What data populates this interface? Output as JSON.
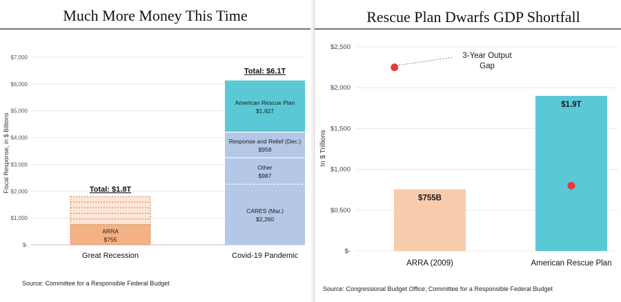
{
  "chart_data": [
    {
      "type": "bar",
      "title": "Much More Money This Time",
      "ylabel": "Fiscal Response, in $ Billions",
      "yticks": [
        "$-",
        "$1,000",
        "$2,000",
        "$3,000",
        "$4,000",
        "$5,000",
        "$6,000",
        "$7,000"
      ],
      "ylim": [
        0,
        7000
      ],
      "grid": true,
      "categories": [
        "Great Recession",
        "Covid-19 Pandemic"
      ],
      "stacks": [
        {
          "category": "Great Recession",
          "total_label": "Total: $1.8T",
          "total": 1800,
          "segments": [
            {
              "name": "ARRA",
              "value_label": "$755",
              "value": 755,
              "color": "#f4b183"
            },
            {
              "name": "",
              "value_label": "",
              "value": 1045,
              "color": "#fbe5d6"
            }
          ]
        },
        {
          "category": "Covid-19 Pandemic",
          "total_label": "Total: $6.1T",
          "total": 6132,
          "segments": [
            {
              "name": "CARES (Mar.)",
              "value_label": "$2,260",
              "value": 2260,
              "color": "#b4c7e7"
            },
            {
              "name": "Other",
              "value_label": "$987",
              "value": 987,
              "color": "#b4c7e7"
            },
            {
              "name": "Response and Relief (Dec.)",
              "value_label": "$958",
              "value": 958,
              "color": "#b4c7e7"
            },
            {
              "name": "American Rescue Plan",
              "value_label": "$1,927",
              "value": 1927,
              "color": "#5bc8d6"
            }
          ]
        }
      ],
      "source": "Source: Committee for a Responsible Federal Budget"
    },
    {
      "type": "bar",
      "title": "Rescue Plan Dwarfs GDP Shortfall",
      "ylabel": "In $ Trillions",
      "yticks": [
        "$-",
        "$0.500",
        "$1,000",
        "$1,500",
        "$2,000",
        "$2,500"
      ],
      "ylim": [
        0,
        2500
      ],
      "grid": true,
      "categories": [
        "ARRA (2009)",
        "American Rescue Plan"
      ],
      "bars": [
        {
          "category": "ARRA (2009)",
          "value": 755,
          "value_label": "$755B",
          "color": "#f8cbad"
        },
        {
          "category": "American Rescue Plan",
          "value": 1900,
          "value_label": "$1.9T",
          "color": "#5bc8d6"
        }
      ],
      "points": [
        {
          "x": -0.25,
          "y": 2250,
          "color": "#e03c3c"
        },
        {
          "x": 1,
          "y": 800,
          "color": "#e03c3c"
        }
      ],
      "annotation": "3-Year Output Gap",
      "annotation_lines": [
        "3-Year Output",
        "Gap"
      ],
      "source": "Source: Congressional Budget Office; Committee for a Responsible Federal Budget"
    }
  ]
}
